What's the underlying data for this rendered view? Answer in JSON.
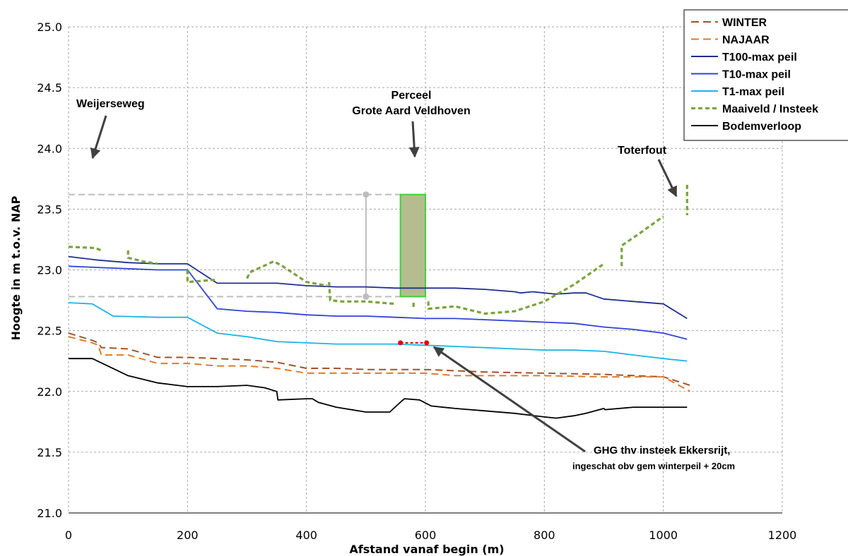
{
  "chart_data": {
    "type": "line",
    "xlabel": "Afstand vanaf begin (m)",
    "ylabel": "Hoogte in m t.o.v. NAP",
    "xlim": [
      0,
      1200
    ],
    "ylim": [
      21.0,
      25.0
    ],
    "xticks": [
      0,
      200,
      400,
      600,
      800,
      1000,
      1200
    ],
    "yticks": [
      "21.0",
      "21.5",
      "22.0",
      "22.5",
      "23.0",
      "23.5",
      "24.0",
      "24.5",
      "25.0"
    ],
    "grid": true,
    "legend_position": "top-right",
    "series": [
      {
        "name": "WINTER",
        "color": "#a0522d",
        "dash": "long",
        "segments": [
          [
            [
              0,
              22.48
            ],
            [
              40,
              22.42
            ],
            [
              50,
              22.4
            ],
            [
              55,
              22.36
            ],
            [
              60,
              22.36
            ],
            [
              100,
              22.35
            ],
            [
              150,
              22.28
            ],
            [
              200,
              22.28
            ],
            [
              250,
              22.27
            ],
            [
              300,
              22.26
            ],
            [
              350,
              22.24
            ],
            [
              400,
              22.19
            ],
            [
              450,
              22.19
            ],
            [
              500,
              22.18
            ],
            [
              550,
              22.18
            ],
            [
              600,
              22.18
            ],
            [
              700,
              22.16
            ],
            [
              800,
              22.15
            ],
            [
              900,
              22.14
            ],
            [
              1000,
              22.12
            ],
            [
              1045,
              22.05
            ]
          ]
        ]
      },
      {
        "name": "NAJAAR",
        "color": "#e07b2a",
        "dash": "long",
        "segments": [
          [
            [
              0,
              22.45
            ],
            [
              40,
              22.4
            ],
            [
              50,
              22.38
            ],
            [
              55,
              22.3
            ],
            [
              60,
              22.3
            ],
            [
              100,
              22.3
            ],
            [
              150,
              22.23
            ],
            [
              200,
              22.23
            ],
            [
              250,
              22.21
            ],
            [
              300,
              22.21
            ],
            [
              350,
              22.19
            ],
            [
              400,
              22.15
            ],
            [
              450,
              22.15
            ],
            [
              500,
              22.15
            ],
            [
              550,
              22.15
            ],
            [
              600,
              22.15
            ],
            [
              650,
              22.13
            ],
            [
              700,
              22.13
            ],
            [
              800,
              22.13
            ],
            [
              900,
              22.12
            ],
            [
              1000,
              22.12
            ],
            [
              1045,
              22.0
            ]
          ]
        ]
      },
      {
        "name": "T100-max peil",
        "color": "#1f2f8f",
        "dash": "solid",
        "segments": [
          [
            [
              0,
              23.11
            ],
            [
              50,
              23.08
            ],
            [
              100,
              23.06
            ],
            [
              150,
              23.05
            ],
            [
              200,
              23.05
            ],
            [
              250,
              22.89
            ],
            [
              300,
              22.89
            ],
            [
              350,
              22.89
            ],
            [
              400,
              22.87
            ],
            [
              450,
              22.86
            ],
            [
              500,
              22.86
            ],
            [
              550,
              22.85
            ],
            [
              600,
              22.85
            ],
            [
              650,
              22.85
            ],
            [
              700,
              22.84
            ],
            [
              750,
              22.82
            ],
            [
              760,
              22.81
            ],
            [
              780,
              22.82
            ],
            [
              800,
              22.81
            ],
            [
              820,
              22.8
            ],
            [
              850,
              22.81
            ],
            [
              870,
              22.81
            ],
            [
              900,
              22.76
            ],
            [
              950,
              22.74
            ],
            [
              1000,
              22.72
            ],
            [
              1040,
              22.6
            ]
          ]
        ]
      },
      {
        "name": "T10-max peil",
        "color": "#2e43d8",
        "dash": "solid",
        "segments": [
          [
            [
              0,
              23.03
            ],
            [
              50,
              23.02
            ],
            [
              100,
              23.01
            ],
            [
              150,
              23.0
            ],
            [
              200,
              23.0
            ],
            [
              250,
              22.68
            ],
            [
              300,
              22.66
            ],
            [
              350,
              22.65
            ],
            [
              400,
              22.63
            ],
            [
              450,
              22.62
            ],
            [
              500,
              22.62
            ],
            [
              550,
              22.61
            ],
            [
              600,
              22.6
            ],
            [
              650,
              22.6
            ],
            [
              700,
              22.59
            ],
            [
              750,
              22.58
            ],
            [
              800,
              22.57
            ],
            [
              850,
              22.56
            ],
            [
              900,
              22.53
            ],
            [
              950,
              22.51
            ],
            [
              1000,
              22.48
            ],
            [
              1040,
              22.43
            ]
          ]
        ]
      },
      {
        "name": "T1-max peil",
        "color": "#1cb4e6",
        "dash": "solid",
        "segments": [
          [
            [
              0,
              22.73
            ],
            [
              40,
              22.72
            ],
            [
              75,
              22.62
            ],
            [
              150,
              22.61
            ],
            [
              200,
              22.61
            ],
            [
              250,
              22.48
            ],
            [
              300,
              22.45
            ],
            [
              350,
              22.41
            ],
            [
              400,
              22.4
            ],
            [
              450,
              22.39
            ],
            [
              500,
              22.39
            ],
            [
              550,
              22.39
            ],
            [
              600,
              22.38
            ],
            [
              650,
              22.37
            ],
            [
              700,
              22.36
            ],
            [
              750,
              22.35
            ],
            [
              800,
              22.34
            ],
            [
              850,
              22.34
            ],
            [
              900,
              22.33
            ],
            [
              950,
              22.3
            ],
            [
              1000,
              22.27
            ],
            [
              1040,
              22.25
            ]
          ]
        ]
      },
      {
        "name": "Maaiveld / Insteek",
        "color": "#7aa33a",
        "dash": "short",
        "segments": [
          [
            [
              0,
              23.19
            ],
            [
              45,
              23.18
            ],
            [
              55,
              23.16
            ]
          ],
          [
            [
              100,
              23.16
            ],
            [
              100,
              23.1
            ],
            [
              125,
              23.07
            ],
            [
              150,
              23.05
            ]
          ],
          [
            [
              200,
              23.0
            ],
            [
              200,
              22.9
            ],
            [
              250,
              22.92
            ]
          ],
          [
            [
              300,
              22.93
            ],
            [
              305,
              22.98
            ],
            [
              345,
              23.07
            ],
            [
              360,
              23.03
            ],
            [
              400,
              22.9
            ],
            [
              435,
              22.87
            ]
          ],
          [
            [
              438,
              22.9
            ],
            [
              440,
              22.75
            ],
            [
              460,
              22.74
            ],
            [
              500,
              22.74
            ],
            [
              550,
              22.72
            ]
          ],
          [
            [
              580,
              22.73
            ],
            [
              580,
              22.68
            ]
          ],
          [
            [
              605,
              22.74
            ],
            [
              605,
              22.68
            ],
            [
              650,
              22.7
            ],
            [
              700,
              22.64
            ],
            [
              750,
              22.66
            ],
            [
              800,
              22.74
            ],
            [
              850,
              22.88
            ],
            [
              900,
              23.05
            ]
          ],
          [
            [
              930,
              23.03
            ],
            [
              930,
              23.2
            ],
            [
              960,
              23.3
            ],
            [
              1000,
              23.44
            ]
          ],
          [
            [
              1040,
              23.7
            ],
            [
              1040,
              23.45
            ]
          ]
        ]
      },
      {
        "name": "Bodemverloop",
        "color": "#000000",
        "dash": "solid",
        "segments": [
          [
            [
              0,
              22.27
            ],
            [
              40,
              22.27
            ],
            [
              100,
              22.13
            ],
            [
              150,
              22.07
            ],
            [
              200,
              22.04
            ],
            [
              250,
              22.04
            ],
            [
              300,
              22.05
            ],
            [
              330,
              22.03
            ],
            [
              350,
              22.0
            ],
            [
              352,
              21.93
            ],
            [
              400,
              21.94
            ],
            [
              410,
              21.94
            ],
            [
              420,
              21.91
            ],
            [
              450,
              21.87
            ],
            [
              500,
              21.83
            ],
            [
              540,
              21.83
            ],
            [
              560,
              21.92
            ],
            [
              565,
              21.94
            ],
            [
              590,
              21.93
            ],
            [
              610,
              21.88
            ],
            [
              650,
              21.86
            ],
            [
              700,
              21.84
            ],
            [
              750,
              21.82
            ],
            [
              800,
              21.79
            ],
            [
              820,
              21.78
            ],
            [
              850,
              21.8
            ],
            [
              870,
              21.82
            ],
            [
              900,
              21.86
            ],
            [
              902,
              21.85
            ],
            [
              950,
              21.87
            ],
            [
              1000,
              21.87
            ],
            [
              1040,
              21.87
            ]
          ]
        ]
      }
    ],
    "annotations": {
      "weijerseweg": "Weijerseweg",
      "perceel_line1": "Perceel",
      "perceel_line2": "Grote Aard  Veldhoven",
      "toterfout": "Toterfout",
      "ghg_line1": "GHG thv insteek Ekkersrijt,",
      "ghg_line2": "ingeschat obv gem winterpeil + 20cm"
    },
    "perceel_box": {
      "x_from": 558,
      "x_to": 600,
      "y_from": 22.78,
      "y_to": 23.62,
      "fill": "#b5bd8f",
      "stroke": "#3ed13e"
    },
    "reference_levels": {
      "upper": 23.62,
      "lower": 22.78,
      "x_from": 0,
      "x_to": 558,
      "marker_x": 500,
      "color": "#bdbdbd"
    },
    "ghg_marker": {
      "x_from": 558,
      "x_to": 602,
      "y": 22.4,
      "color": "#e00000"
    }
  }
}
